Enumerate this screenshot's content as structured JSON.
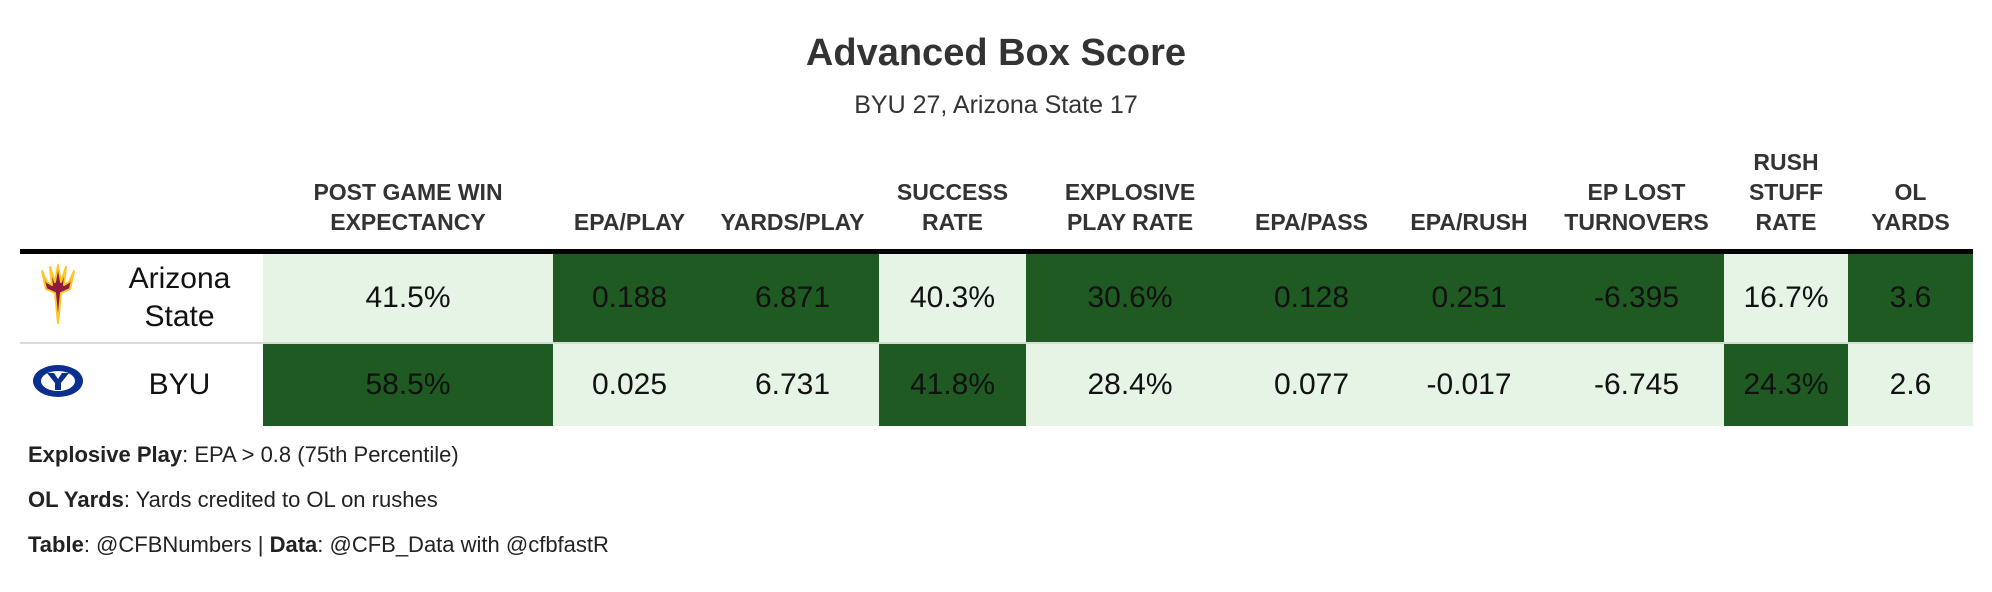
{
  "title": "Advanced Box Score",
  "subtitle": "BYU 27, Arizona State 17",
  "colors": {
    "dark": "#1e5a21",
    "light": "#e6f4e6",
    "asu_logo": "#8c1d40",
    "asu_gold": "#ffc627",
    "byu_logo": "#0a2f8f"
  },
  "chart_data": {
    "type": "table",
    "columns": [
      [
        "POST GAME WIN",
        "EXPECTANCY"
      ],
      [
        "EPA/PLAY"
      ],
      [
        "YARDS/PLAY"
      ],
      [
        "SUCCESS",
        "RATE"
      ],
      [
        "EXPLOSIVE",
        "PLAY RATE"
      ],
      [
        "EPA/PASS"
      ],
      [
        "EPA/RUSH"
      ],
      [
        "EP LOST",
        "TURNOVERS"
      ],
      [
        "RUSH",
        "STUFF",
        "RATE"
      ],
      [
        "OL",
        "YARDS"
      ]
    ],
    "rows": [
      {
        "team_lines": [
          "Arizona",
          "State"
        ],
        "logo": "asu-pitchfork-icon",
        "values": [
          "41.5%",
          "0.188",
          "6.871",
          "40.3%",
          "30.6%",
          "0.128",
          "0.251",
          "-6.395",
          "16.7%",
          "3.6"
        ],
        "shading": [
          "light",
          "dark",
          "dark",
          "light",
          "dark",
          "dark",
          "dark",
          "dark",
          "light",
          "dark"
        ]
      },
      {
        "team_lines": [
          "BYU"
        ],
        "logo": "byu-oval-icon",
        "values": [
          "58.5%",
          "0.025",
          "6.731",
          "41.8%",
          "28.4%",
          "0.077",
          "-0.017",
          "-6.745",
          "24.3%",
          "2.6"
        ],
        "shading": [
          "dark",
          "light",
          "light",
          "dark",
          "light",
          "light",
          "light",
          "light",
          "dark",
          "light"
        ]
      }
    ]
  },
  "footnotes": [
    {
      "label": "Explosive Play",
      "text": ": EPA > 0.8 (75th Percentile)"
    },
    {
      "label": "OL Yards",
      "text": ": Yards credited to OL on rushes"
    },
    {
      "label_a": "Table",
      "text_a": ": @CFBNumbers | ",
      "label_b": "Data",
      "text_b": ": @CFB_Data with @cfbfastR"
    }
  ]
}
